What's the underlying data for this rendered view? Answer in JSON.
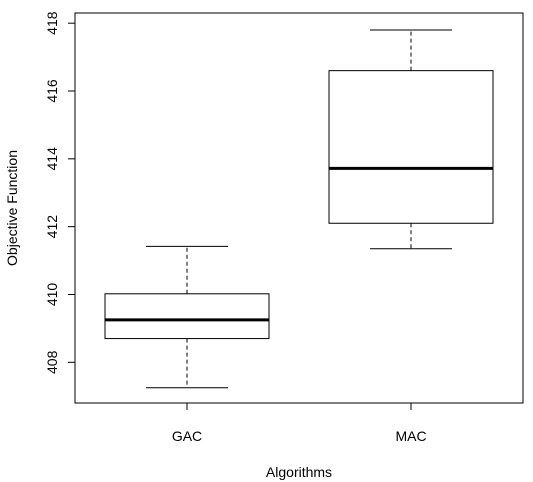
{
  "chart_data": {
    "type": "boxplot",
    "title": "",
    "xlabel": "Algorithms",
    "ylabel": "Objective Function",
    "categories": [
      "GAC",
      "MAC"
    ],
    "ylim": [
      406.8,
      418.3
    ],
    "yticks": [
      408,
      410,
      412,
      414,
      416,
      418
    ],
    "grid": false,
    "boxes": [
      {
        "category": "GAC",
        "min": 407.25,
        "q1": 408.7,
        "median": 409.25,
        "q3": 410.02,
        "max": 411.42
      },
      {
        "category": "MAC",
        "min": 411.35,
        "q1": 412.1,
        "median": 413.72,
        "q3": 416.6,
        "max": 417.8
      }
    ]
  }
}
